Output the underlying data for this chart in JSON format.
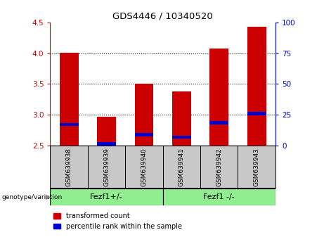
{
  "title": "GDS4446 / 10340520",
  "samples": [
    "GSM639938",
    "GSM639939",
    "GSM639940",
    "GSM639941",
    "GSM639942",
    "GSM639943"
  ],
  "red_values": [
    4.01,
    2.97,
    3.5,
    3.38,
    4.08,
    4.43
  ],
  "blue_values": [
    2.84,
    2.53,
    2.68,
    2.64,
    2.87,
    3.02
  ],
  "ymin": 2.5,
  "ymax": 4.5,
  "yticks_left": [
    2.5,
    3.0,
    3.5,
    4.0,
    4.5
  ],
  "yticks_right": [
    0,
    25,
    50,
    75,
    100
  ],
  "group1_label": "Fezf1+/-",
  "group2_label": "Fezf1 -/-",
  "group_color": "#90EE90",
  "genotype_label": "genotype/variation",
  "legend_red": "transformed count",
  "legend_blue": "percentile rank within the sample",
  "bar_width": 0.5,
  "left_axis_color": "#CC0000",
  "right_axis_color": "#0000CC",
  "background_label": "#C8C8C8",
  "bar_color_red": "#CC0000",
  "bar_color_blue": "#0000CC",
  "grid_ticks": [
    3.0,
    3.5,
    4.0
  ],
  "blue_bar_height": 0.05
}
